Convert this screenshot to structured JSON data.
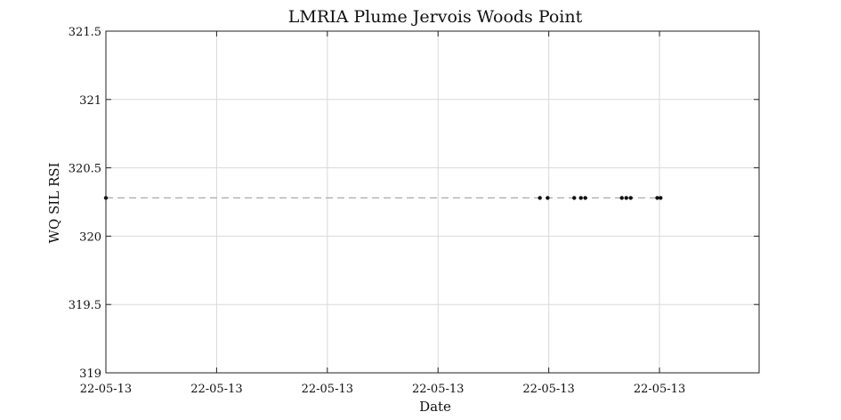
{
  "chart_data": {
    "type": "scatter",
    "title": "LMRIA Plume Jervois Woods Point",
    "xlabel": "Date",
    "ylabel": "WQ SIL RSI",
    "ylim": [
      319,
      321.5
    ],
    "yticks": [
      319,
      319.5,
      320,
      320.5,
      321,
      321.5
    ],
    "ytick_labels": [
      "319",
      "319.5",
      "320",
      "320.5",
      "321",
      "321.5"
    ],
    "xlim": [
      0,
      0.59
    ],
    "xticks": [
      0,
      0.1,
      0.2,
      0.3,
      0.4,
      0.5
    ],
    "xtick_labels": [
      "22-05-13",
      "22-05-13",
      "22-05-13",
      "22-05-13",
      "22-05-13",
      "22-05-13"
    ],
    "grid": true,
    "colors": {
      "points": "#111111",
      "reference_line": "#aaaaaa",
      "grid": "#d9d9d9",
      "axes": "#222222"
    },
    "series": [
      {
        "values": [
          {
            "x": 0.0,
            "y": 320.28
          },
          {
            "x": 0.392,
            "y": 320.28
          },
          {
            "x": 0.399,
            "y": 320.28
          },
          {
            "x": 0.423,
            "y": 320.28
          },
          {
            "x": 0.429,
            "y": 320.28
          },
          {
            "x": 0.433,
            "y": 320.28
          },
          {
            "x": 0.466,
            "y": 320.28
          },
          {
            "x": 0.47,
            "y": 320.28
          },
          {
            "x": 0.474,
            "y": 320.28
          },
          {
            "x": 0.498,
            "y": 320.28
          },
          {
            "x": 0.501,
            "y": 320.28
          }
        ]
      }
    ],
    "reference_line": {
      "y": 320.28,
      "x_from": 0.0,
      "x_to": 0.501,
      "style": "dashed"
    }
  }
}
